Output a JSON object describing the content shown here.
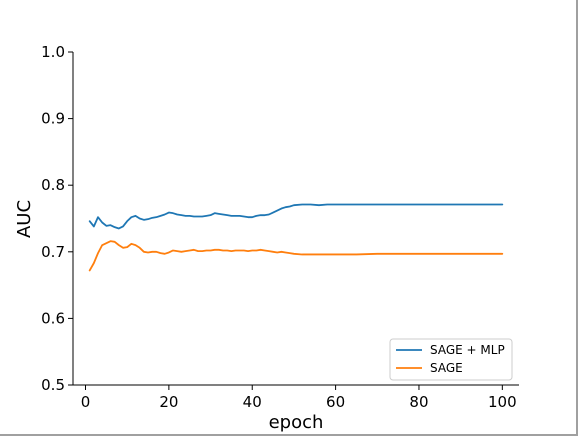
{
  "chart_data": {
    "type": "line",
    "title": "",
    "xlabel": "epoch",
    "ylabel": "AUC",
    "xlim": [
      -3,
      104
    ],
    "ylim": [
      0.5,
      1.0
    ],
    "xticks": [
      "0",
      "20",
      "40",
      "60",
      "80",
      "100"
    ],
    "yticks": [
      "0.5",
      "0.6",
      "0.7",
      "0.8",
      "0.9",
      "1.0"
    ],
    "grid": false,
    "legend_position": "lower-right",
    "x": [
      1,
      2,
      3,
      4,
      5,
      6,
      7,
      8,
      9,
      10,
      11,
      12,
      13,
      14,
      15,
      16,
      17,
      18,
      19,
      20,
      21,
      22,
      23,
      24,
      25,
      26,
      27,
      28,
      29,
      30,
      31,
      32,
      33,
      34,
      35,
      36,
      37,
      38,
      39,
      40,
      41,
      42,
      43,
      44,
      45,
      46,
      47,
      48,
      49,
      50,
      52,
      54,
      56,
      58,
      60,
      65,
      70,
      75,
      80,
      85,
      90,
      95,
      100
    ],
    "series": [
      {
        "name": "SAGE + MLP",
        "color": "#1f77b4",
        "values": [
          0.746,
          0.738,
          0.752,
          0.744,
          0.739,
          0.74,
          0.737,
          0.735,
          0.738,
          0.746,
          0.752,
          0.754,
          0.75,
          0.748,
          0.749,
          0.751,
          0.752,
          0.754,
          0.756,
          0.759,
          0.758,
          0.756,
          0.755,
          0.754,
          0.754,
          0.753,
          0.753,
          0.753,
          0.754,
          0.755,
          0.758,
          0.757,
          0.756,
          0.755,
          0.754,
          0.754,
          0.754,
          0.753,
          0.752,
          0.752,
          0.754,
          0.755,
          0.755,
          0.756,
          0.759,
          0.762,
          0.765,
          0.767,
          0.768,
          0.77,
          0.771,
          0.771,
          0.77,
          0.771,
          0.771,
          0.771,
          0.771,
          0.771,
          0.771,
          0.771,
          0.771,
          0.771,
          0.771
        ]
      },
      {
        "name": "SAGE",
        "color": "#ff7f0e",
        "values": [
          0.672,
          0.683,
          0.698,
          0.71,
          0.713,
          0.716,
          0.715,
          0.71,
          0.706,
          0.707,
          0.712,
          0.71,
          0.706,
          0.7,
          0.699,
          0.7,
          0.7,
          0.698,
          0.697,
          0.699,
          0.702,
          0.701,
          0.7,
          0.701,
          0.702,
          0.703,
          0.701,
          0.701,
          0.702,
          0.702,
          0.703,
          0.703,
          0.702,
          0.702,
          0.701,
          0.702,
          0.702,
          0.702,
          0.701,
          0.702,
          0.702,
          0.703,
          0.702,
          0.701,
          0.7,
          0.699,
          0.7,
          0.699,
          0.698,
          0.697,
          0.696,
          0.696,
          0.696,
          0.696,
          0.696,
          0.696,
          0.697,
          0.697,
          0.697,
          0.697,
          0.697,
          0.697,
          0.697
        ]
      }
    ]
  }
}
